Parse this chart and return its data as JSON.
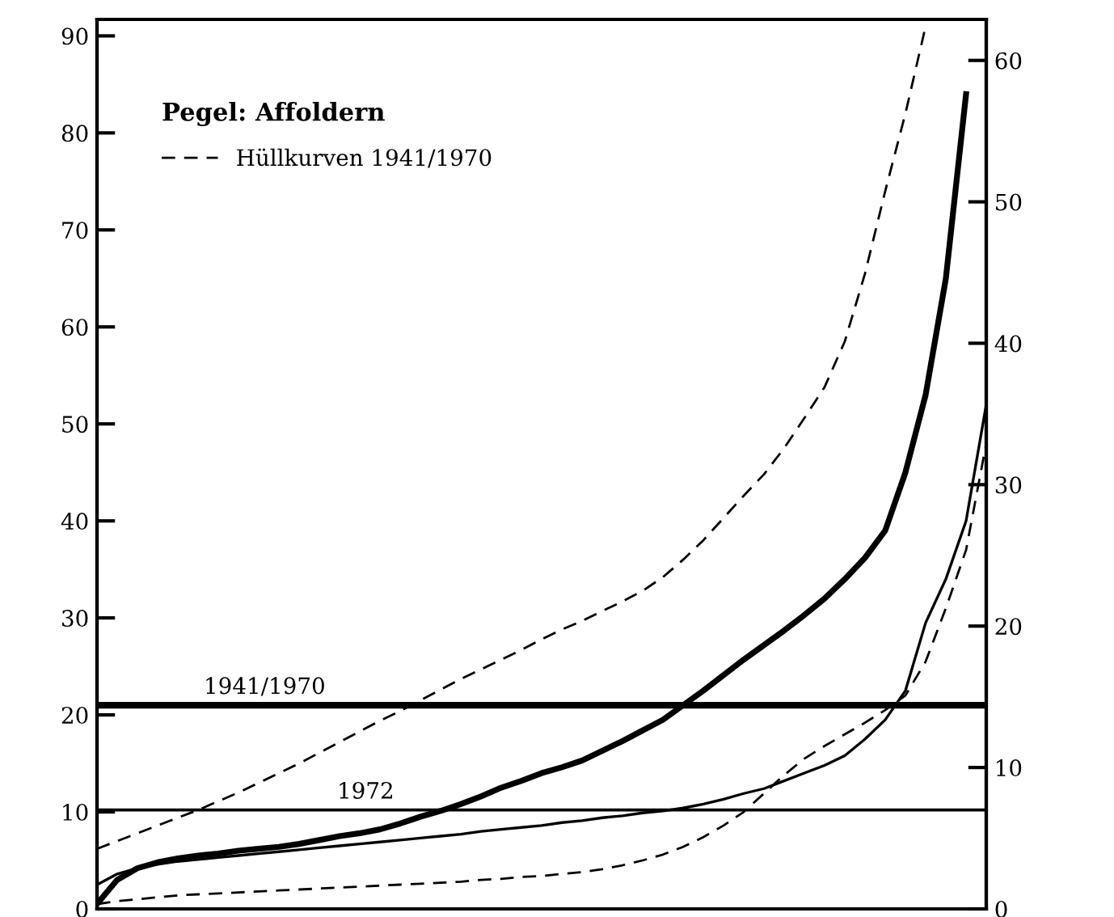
{
  "chart_data": {
    "type": "line",
    "categories": [
      null,
      null,
      null,
      null,
      null,
      null,
      null,
      null,
      null,
      null,
      null,
      null,
      null,
      null,
      null,
      null,
      null,
      null,
      null,
      null,
      null,
      null,
      null,
      null,
      null,
      null,
      null,
      null,
      null,
      null,
      null,
      null,
      null,
      null,
      null,
      null,
      null,
      null,
      null,
      null,
      null,
      null,
      null,
      null,
      null
    ],
    "series": [
      {
        "name": "Hüllkurven 1941/1970",
        "color": "#000000",
        "line_style": "dashed",
        "values": [
          6.2,
          7.0,
          7.8,
          8.6,
          9.4,
          10.2,
          11.1,
          12.0,
          13.0,
          14.0,
          15.0,
          16.1,
          17.2,
          18.3,
          19.4,
          20.4,
          21.5,
          22.6,
          23.7,
          24.7,
          25.7,
          26.7,
          27.8,
          28.8,
          29.7,
          30.7,
          31.7,
          32.8,
          34.2,
          36.0,
          38.0,
          40.3,
          42.6,
          44.8,
          47.5,
          50.6,
          53.8,
          58.5,
          65.5,
          74,
          82,
          91,
          null,
          null,
          null
        ]
      },
      {
        "color": "#000000",
        "line_style": "dashed",
        "values": [
          0.5,
          0.8,
          1.0,
          1.2,
          1.4,
          1.5,
          1.6,
          1.7,
          1.8,
          1.9,
          2.0,
          2.1,
          2.2,
          2.3,
          2.4,
          2.5,
          2.6,
          2.7,
          2.8,
          3.0,
          3.1,
          3.3,
          3.4,
          3.6,
          3.8,
          4.1,
          4.5,
          5.0,
          5.6,
          6.4,
          7.4,
          8.6,
          10.0,
          11.9,
          13.8,
          15.5,
          16.8,
          18.0,
          19.2,
          20.5,
          22.0,
          25.5,
          31,
          37,
          48
        ]
      },
      {
        "color": "#000000",
        "line_style": "solid",
        "values": [
          0.5,
          3,
          4.2,
          4.8,
          5.2,
          5.5,
          5.7,
          6.0,
          6.2,
          6.4,
          6.7,
          7.1,
          7.5,
          7.8,
          8.2,
          8.8,
          9.5,
          10.1,
          10.8,
          11.6,
          12.5,
          13.2,
          14.0,
          14.6,
          15.3,
          16.3,
          17.3,
          18.4,
          19.5,
          21.0,
          22.5,
          24.1,
          25.7,
          27.2,
          28.7,
          30.3,
          32,
          34,
          36.2,
          39,
          45,
          53,
          65,
          84,
          null
        ]
      },
      {
        "color": "#000000",
        "line_style": "solid",
        "values": [
          2.5,
          3.6,
          4.2,
          4.6,
          4.9,
          5.1,
          5.3,
          5.5,
          5.7,
          5.9,
          6.1,
          6.3,
          6.5,
          6.7,
          6.9,
          7.1,
          7.3,
          7.5,
          7.7,
          8.0,
          8.2,
          8.4,
          8.6,
          8.9,
          9.1,
          9.4,
          9.6,
          9.9,
          10.1,
          10.4,
          10.8,
          11.3,
          11.9,
          12.4,
          13.2,
          14.0,
          14.8,
          15.8,
          17.5,
          19.5,
          22.5,
          29.5,
          34,
          40,
          52
        ]
      },
      {
        "name": "1941/1970",
        "color": "#000000",
        "line_style": "solid",
        "values": [
          21,
          21,
          21,
          21,
          21,
          21,
          21,
          21,
          21,
          21,
          21,
          21,
          21,
          21,
          21,
          21,
          21,
          21,
          21,
          21,
          21,
          21,
          21,
          21,
          21,
          21,
          21,
          21,
          21,
          21,
          21,
          21,
          21,
          21,
          21,
          21,
          21,
          21,
          21,
          21,
          21,
          21,
          21,
          21,
          21
        ]
      },
      {
        "name": "1972",
        "color": "#000000",
        "line_style": "solid",
        "values": [
          10.2,
          10.2,
          10.2,
          10.2,
          10.2,
          10.2,
          10.2,
          10.2,
          10.2,
          10.2,
          10.2,
          10.2,
          10.2,
          10.2,
          10.2,
          10.2,
          10.2,
          10.2,
          10.2,
          10.2,
          10.2,
          10.2,
          10.2,
          10.2,
          10.2,
          10.2,
          10.2,
          10.2,
          10.2,
          10.2,
          10.2,
          10.2,
          10.2,
          10.2,
          10.2,
          10.2,
          10.2,
          10.2,
          10.2,
          10.2,
          10.2,
          10.2,
          10.2,
          10.2,
          10.2
        ]
      }
    ],
    "ylim": [
      0,
      91.7
    ],
    "yticks": [
      0,
      10,
      20,
      30,
      40,
      50,
      60,
      70,
      80,
      90
    ],
    "y2lim": [
      0,
      62.9
    ],
    "y2ticks": [
      0,
      10,
      20,
      30,
      40,
      50,
      60
    ],
    "legend_title": "Pegel: Affoldern",
    "legend": "top left",
    "grid": false
  }
}
